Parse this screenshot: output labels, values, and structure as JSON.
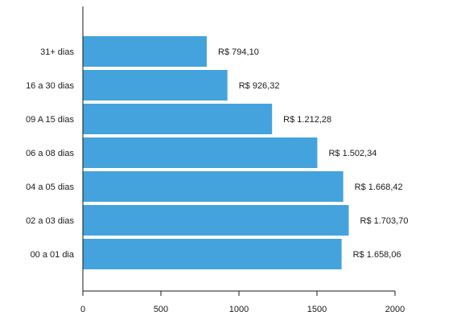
{
  "chart_data": {
    "type": "bar",
    "orientation": "horizontal",
    "categories": [
      "31+ dias",
      "16 a 30 dias",
      "09 A 15 dias",
      "06 a 08 dias",
      "04 a 05 dias",
      "02 a 03 dias",
      "00 a 01 dia"
    ],
    "values": [
      794.1,
      926.32,
      1212.28,
      1502.34,
      1668.42,
      1703.7,
      1658.06
    ],
    "data_labels": [
      "R$ 794,10",
      "R$ 926,32",
      "R$ 1.212,28",
      "R$ 1.502,34",
      "R$ 1.668,42",
      "R$ 1.703,70",
      "R$ 1.658,06"
    ],
    "x_ticks": [
      0,
      500,
      1000,
      1500,
      2000
    ],
    "x_tick_labels": [
      "0",
      "500",
      "1000",
      "1500",
      "2000"
    ],
    "xlim": [
      0,
      2000
    ],
    "bar_color": "#44a3dc",
    "grid": false,
    "legend": "none"
  }
}
